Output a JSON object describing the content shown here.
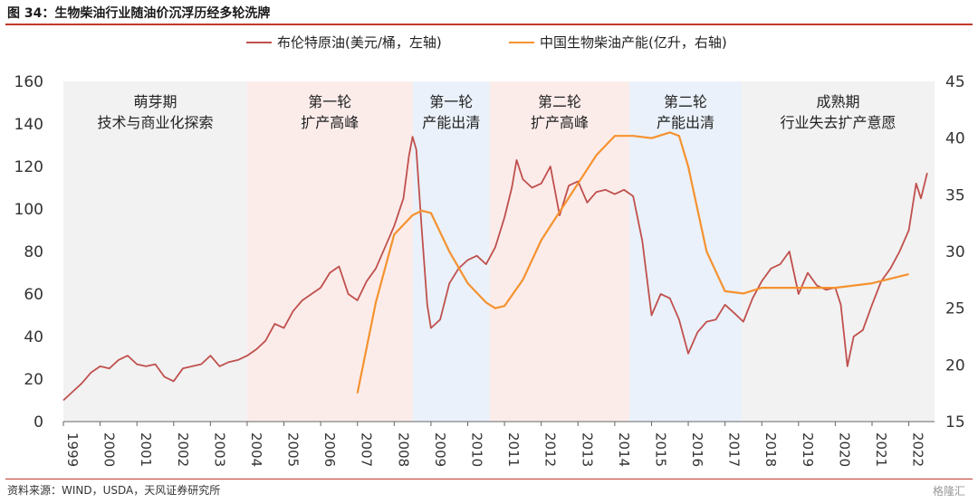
{
  "figure": {
    "title": "图 34：生物柴油行业随油价沉浮历经多轮洗牌",
    "source": "资料来源：WIND，USDA，天风证券研究所",
    "watermark": "格隆汇"
  },
  "chart_data": {
    "type": "line",
    "x_ticks": [
      "1999",
      "2000",
      "2001",
      "2002",
      "2003",
      "2004",
      "2005",
      "2006",
      "2007",
      "2008",
      "2009",
      "2010",
      "2011",
      "2012",
      "2013",
      "2014",
      "2015",
      "2016",
      "2017",
      "2018",
      "2019",
      "2020",
      "2021",
      "2022"
    ],
    "y_left": {
      "range": [
        0,
        160
      ],
      "ticks": [
        0,
        20,
        40,
        60,
        80,
        100,
        120,
        140,
        160
      ]
    },
    "y_right": {
      "range": [
        15,
        45
      ],
      "ticks": [
        15,
        20,
        25,
        30,
        35,
        40,
        45
      ]
    },
    "legend_position": "top",
    "series": [
      {
        "name": "布伦特原油(美元/桶，左轴)",
        "axis": "left",
        "color": "#c0504d",
        "points": [
          [
            1999.0,
            10
          ],
          [
            1999.25,
            14
          ],
          [
            1999.5,
            18
          ],
          [
            1999.75,
            23
          ],
          [
            2000.0,
            26
          ],
          [
            2000.25,
            25
          ],
          [
            2000.5,
            29
          ],
          [
            2000.75,
            31
          ],
          [
            2001.0,
            27
          ],
          [
            2001.25,
            26
          ],
          [
            2001.5,
            27
          ],
          [
            2001.75,
            21
          ],
          [
            2002.0,
            19
          ],
          [
            2002.25,
            25
          ],
          [
            2002.5,
            26
          ],
          [
            2002.75,
            27
          ],
          [
            2003.0,
            31
          ],
          [
            2003.25,
            26
          ],
          [
            2003.5,
            28
          ],
          [
            2003.75,
            29
          ],
          [
            2004.0,
            31
          ],
          [
            2004.25,
            34
          ],
          [
            2004.5,
            38
          ],
          [
            2004.75,
            46
          ],
          [
            2005.0,
            44
          ],
          [
            2005.25,
            52
          ],
          [
            2005.5,
            57
          ],
          [
            2005.75,
            60
          ],
          [
            2006.0,
            63
          ],
          [
            2006.25,
            70
          ],
          [
            2006.5,
            73
          ],
          [
            2006.75,
            60
          ],
          [
            2007.0,
            57
          ],
          [
            2007.25,
            66
          ],
          [
            2007.5,
            72
          ],
          [
            2007.75,
            82
          ],
          [
            2008.0,
            92
          ],
          [
            2008.25,
            105
          ],
          [
            2008.4,
            125
          ],
          [
            2008.5,
            134
          ],
          [
            2008.6,
            128
          ],
          [
            2008.75,
            90
          ],
          [
            2008.9,
            55
          ],
          [
            2009.0,
            44
          ],
          [
            2009.25,
            48
          ],
          [
            2009.5,
            65
          ],
          [
            2009.75,
            72
          ],
          [
            2010.0,
            76
          ],
          [
            2010.25,
            78
          ],
          [
            2010.5,
            74
          ],
          [
            2010.75,
            82
          ],
          [
            2011.0,
            96
          ],
          [
            2011.2,
            110
          ],
          [
            2011.33,
            123
          ],
          [
            2011.5,
            114
          ],
          [
            2011.75,
            110
          ],
          [
            2012.0,
            112
          ],
          [
            2012.25,
            120
          ],
          [
            2012.5,
            97
          ],
          [
            2012.75,
            111
          ],
          [
            2013.0,
            113
          ],
          [
            2013.25,
            103
          ],
          [
            2013.5,
            108
          ],
          [
            2013.75,
            109
          ],
          [
            2014.0,
            107
          ],
          [
            2014.25,
            109
          ],
          [
            2014.5,
            106
          ],
          [
            2014.75,
            85
          ],
          [
            2015.0,
            50
          ],
          [
            2015.25,
            60
          ],
          [
            2015.5,
            58
          ],
          [
            2015.75,
            48
          ],
          [
            2016.0,
            32
          ],
          [
            2016.25,
            42
          ],
          [
            2016.5,
            47
          ],
          [
            2016.75,
            48
          ],
          [
            2017.0,
            55
          ],
          [
            2017.25,
            51
          ],
          [
            2017.5,
            47
          ],
          [
            2017.75,
            58
          ],
          [
            2018.0,
            66
          ],
          [
            2018.25,
            72
          ],
          [
            2018.5,
            74
          ],
          [
            2018.75,
            80
          ],
          [
            2019.0,
            60
          ],
          [
            2019.25,
            70
          ],
          [
            2019.5,
            64
          ],
          [
            2019.75,
            62
          ],
          [
            2020.0,
            63
          ],
          [
            2020.15,
            55
          ],
          [
            2020.33,
            26
          ],
          [
            2020.5,
            40
          ],
          [
            2020.75,
            43
          ],
          [
            2021.0,
            55
          ],
          [
            2021.25,
            66
          ],
          [
            2021.5,
            72
          ],
          [
            2021.75,
            80
          ],
          [
            2022.0,
            90
          ],
          [
            2022.2,
            112
          ],
          [
            2022.33,
            105
          ],
          [
            2022.5,
            117
          ]
        ]
      },
      {
        "name": "中国生物柴油产能(亿升，右轴)",
        "axis": "right",
        "color": "#f5922f",
        "points": [
          [
            2007.0,
            17.5
          ],
          [
            2007.5,
            25.5
          ],
          [
            2008.0,
            31.5
          ],
          [
            2008.5,
            33.2
          ],
          [
            2008.75,
            33.6
          ],
          [
            2009.0,
            33.4
          ],
          [
            2009.5,
            30
          ],
          [
            2010.0,
            27.2
          ],
          [
            2010.5,
            25.5
          ],
          [
            2010.75,
            25
          ],
          [
            2011.0,
            25.2
          ],
          [
            2011.5,
            27.5
          ],
          [
            2012.0,
            31
          ],
          [
            2012.5,
            33.5
          ],
          [
            2013.0,
            36
          ],
          [
            2013.5,
            38.5
          ],
          [
            2014.0,
            40.2
          ],
          [
            2014.5,
            40.2
          ],
          [
            2015.0,
            40
          ],
          [
            2015.5,
            40.5
          ],
          [
            2015.75,
            40.2
          ],
          [
            2016.0,
            37.5
          ],
          [
            2016.5,
            30
          ],
          [
            2017.0,
            26.5
          ],
          [
            2017.5,
            26.3
          ],
          [
            2018.0,
            26.8
          ],
          [
            2019.0,
            26.8
          ],
          [
            2020.0,
            26.8
          ],
          [
            2021.0,
            27.2
          ],
          [
            2022.0,
            28.0
          ]
        ]
      }
    ],
    "bands": [
      {
        "from": 1999.0,
        "to": 2004.0,
        "color": "#f2f2f2",
        "label_line1": "萌芽期",
        "label_line2": "技术与商业化探索"
      },
      {
        "from": 2004.0,
        "to": 2008.5,
        "color": "#fbecea",
        "label_line1": "第一轮",
        "label_line2": "扩产高峰"
      },
      {
        "from": 2008.5,
        "to": 2010.6,
        "color": "#eaf1fa",
        "label_line1": "第一轮",
        "label_line2": "产能出清"
      },
      {
        "from": 2010.6,
        "to": 2014.4,
        "color": "#fbecea",
        "label_line1": "第二轮",
        "label_line2": "扩产高峰"
      },
      {
        "from": 2014.4,
        "to": 2017.45,
        "color": "#eaf1fa",
        "label_line1": "第二轮",
        "label_line2": "产能出清"
      },
      {
        "from": 2017.45,
        "to": 2022.7,
        "color": "#f2f2f2",
        "label_line1": "成熟期",
        "label_line2": "行业失去扩产意愿"
      }
    ]
  }
}
